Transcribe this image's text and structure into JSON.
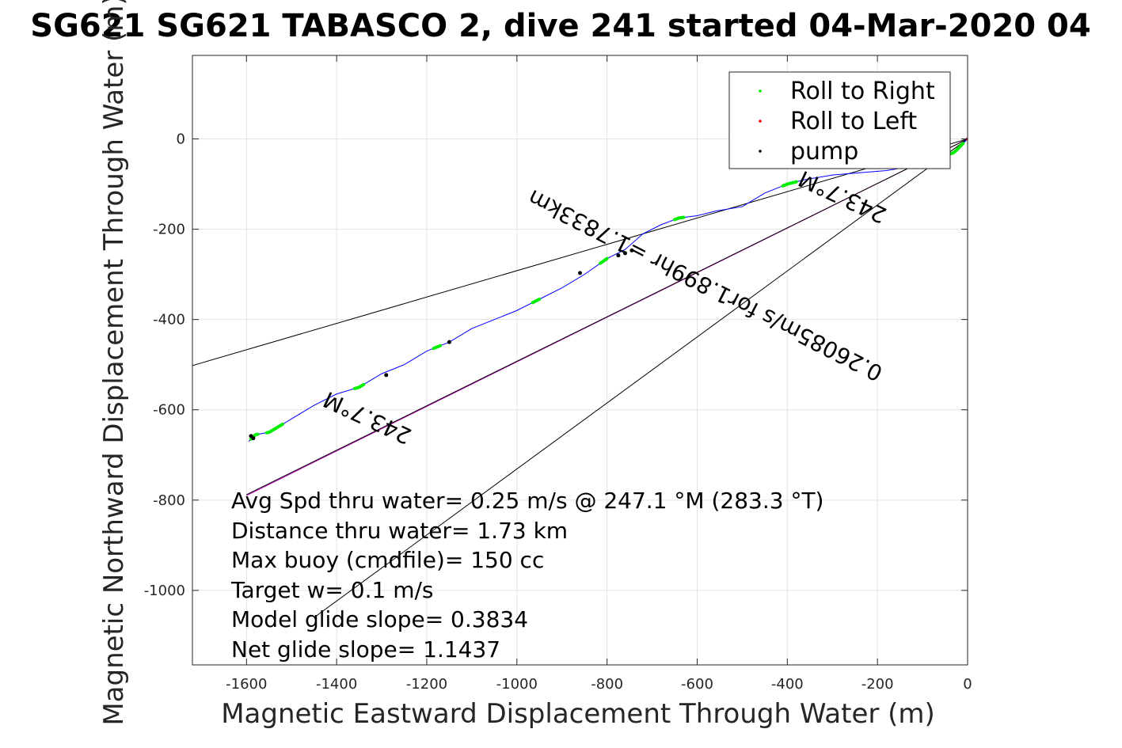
{
  "chart_data": {
    "type": "line",
    "title": "SG621 SG621 TABASCO 2, dive 241 started 04-Mar-2020 04",
    "xlabel": "Magnetic Eastward Displacement Through Water (m)",
    "ylabel": "Magnetic Northward Displacement Through Water (m)",
    "xlim": [
      -1720,
      0
    ],
    "ylim": [
      -1165,
      185
    ],
    "xticks": [
      -1600,
      -1400,
      -1200,
      -1000,
      -800,
      -600,
      -400,
      -200,
      0
    ],
    "yticks": [
      0,
      -200,
      -400,
      -600,
      -800,
      -1000
    ],
    "grid": true,
    "legend_position": "top-right",
    "legend": [
      {
        "label": "Roll to Right",
        "color": "#00ee00"
      },
      {
        "label": "Roll to Left",
        "color": "#ff0000"
      },
      {
        "label": "pump",
        "color": "#000000"
      }
    ],
    "track": {
      "color": "#0000ff",
      "x": [
        0,
        -30,
        -70,
        -120,
        -180,
        -240,
        -300,
        -360,
        -400,
        -450,
        -500,
        -560,
        -600,
        -640,
        -680,
        -720,
        -760,
        -800,
        -850,
        -900,
        -950,
        -1000,
        -1050,
        -1100,
        -1150,
        -1200,
        -1250,
        -1300,
        -1350,
        -1400,
        -1450,
        -1500,
        -1550,
        -1580,
        -1595
      ],
      "y": [
        0,
        -30,
        -45,
        -60,
        -70,
        -75,
        -80,
        -90,
        -100,
        -120,
        -150,
        -160,
        -170,
        -175,
        -190,
        -210,
        -245,
        -265,
        -300,
        -330,
        -355,
        -380,
        -400,
        -420,
        -450,
        -470,
        -500,
        -520,
        -550,
        -565,
        -590,
        -620,
        -650,
        -655,
        -670
      ]
    },
    "roll_right_segments_x": [
      [
        -10,
        -40
      ],
      [
        -380,
        -410
      ],
      [
        -630,
        -650
      ],
      [
        -800,
        -815
      ],
      [
        -950,
        -965
      ],
      [
        -1170,
        -1185
      ],
      [
        -1340,
        -1360
      ],
      [
        -1520,
        -1555
      ],
      [
        -1575,
        -1590
      ]
    ],
    "pump_points": {
      "x": [
        -860,
        -745,
        -760,
        -775,
        -1150,
        -1290,
        -1590,
        -1585
      ],
      "y": [
        -297,
        -247,
        -253,
        -258,
        -450,
        -523,
        -658,
        -663
      ]
    },
    "reference_lines": [
      {
        "x": [
          0,
          -1720
        ],
        "y": [
          0,
          -502
        ],
        "color": "#000000"
      },
      {
        "x": [
          0,
          -1600
        ],
        "y": [
          0,
          -790
        ],
        "color": "#cc00cc"
      },
      {
        "x": [
          0,
          -1600
        ],
        "y": [
          0,
          -788
        ],
        "color": "#000000"
      },
      {
        "x": [
          0,
          -1450
        ],
        "y": [
          0,
          -1060
        ],
        "color": "#000000"
      }
    ],
    "annotations": {
      "heading_left": "243.7°M",
      "heading_right": "243.7°M",
      "speed": "0.26085m/s for1.899hr =1.7833km"
    }
  },
  "info": {
    "line1": "Avg Spd thru water=  0.25 m/s @ 247.1 °M (283.3 °T)",
    "line2": "Distance thru water=  1.73 km",
    "line3": "Max buoy (cmdfile)= 150 cc",
    "line4": "Target w= 0.1 m/s",
    "line5": "Model glide slope= 0.3834",
    "line6": "Net glide slope= 1.1437"
  }
}
